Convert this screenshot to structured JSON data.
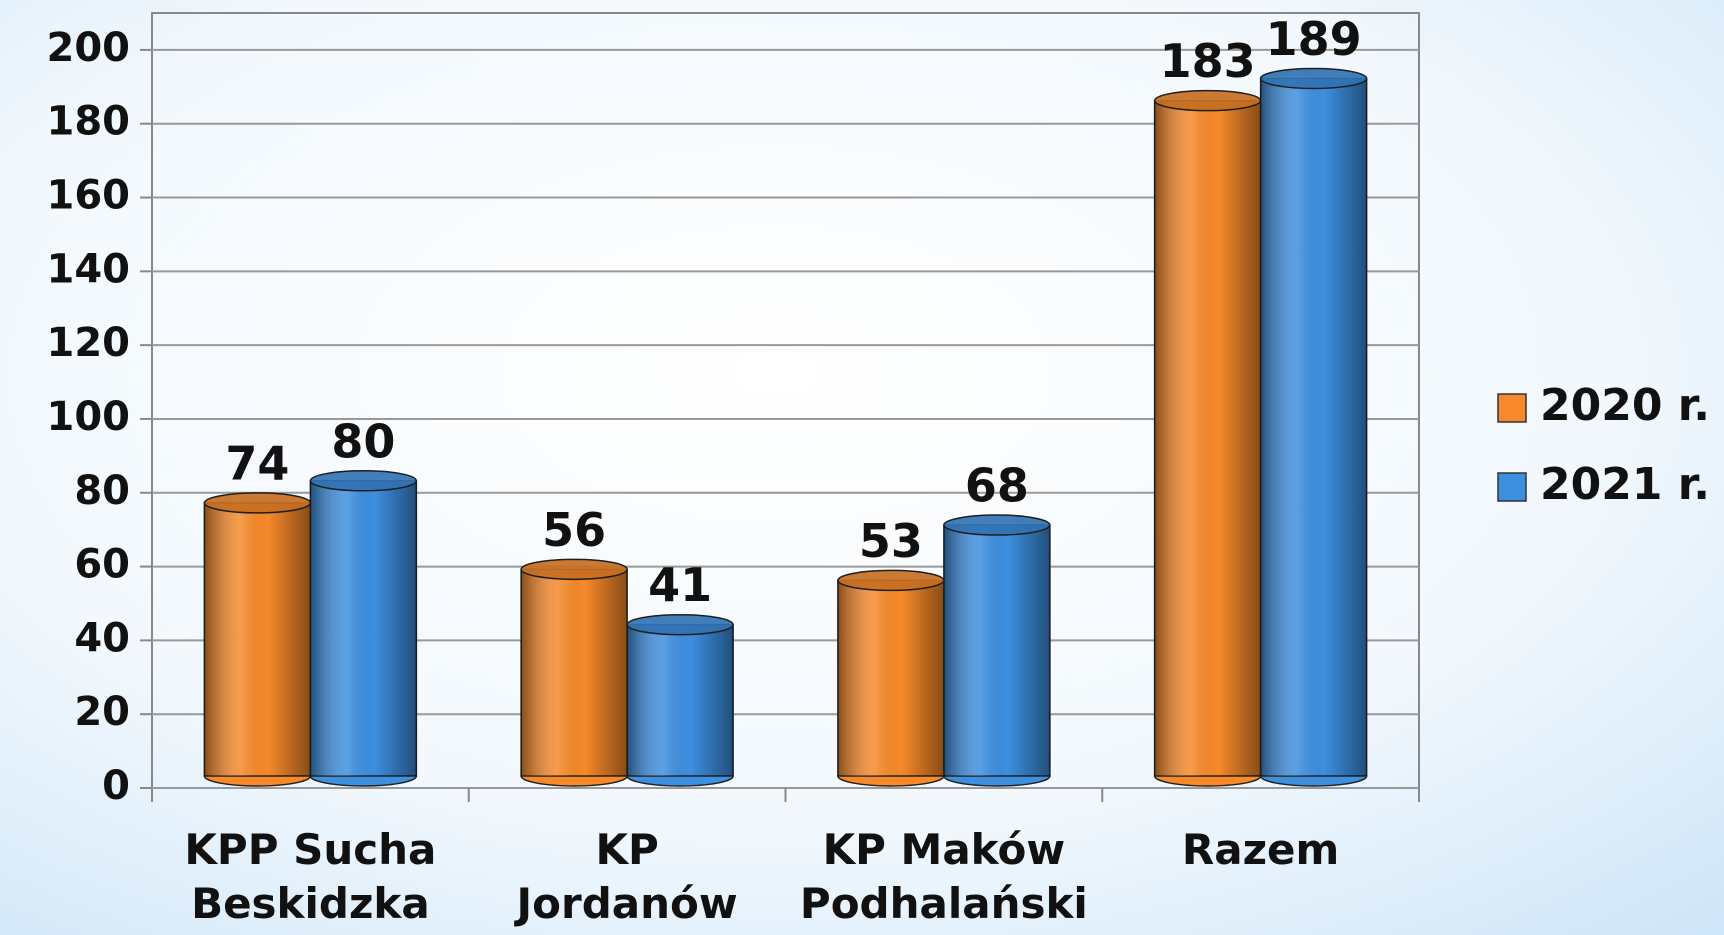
{
  "chart_data": {
    "type": "bar",
    "categories": [
      [
        "KPP Sucha",
        "Beskidzka"
      ],
      [
        "KP",
        "Jordanów"
      ],
      [
        "KP Maków",
        "Podhalański"
      ],
      [
        "Razem"
      ]
    ],
    "series": [
      {
        "name": "2020 r.",
        "color": "#f7892a",
        "values": [
          74,
          56,
          53,
          183
        ]
      },
      {
        "name": "2021 r.",
        "color": "#3d8fe0",
        "values": [
          80,
          41,
          68,
          189
        ]
      }
    ],
    "ylim": [
      0,
      210
    ],
    "yticks": [
      0,
      20,
      40,
      60,
      80,
      100,
      120,
      140,
      160,
      180,
      200
    ],
    "grid": true,
    "legend": "right"
  }
}
